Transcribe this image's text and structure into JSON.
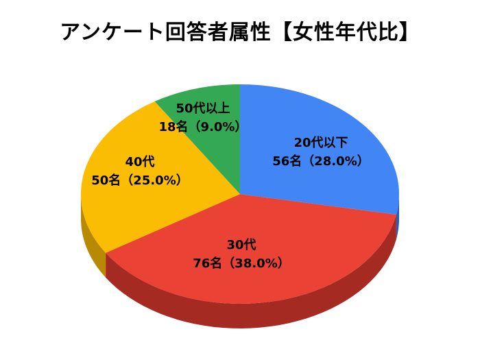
{
  "chart_data": {
    "type": "pie",
    "title": "アンケート回答者属性【女性年代比】",
    "style": "3d",
    "legend": "none",
    "slices": [
      {
        "label": "20代以下",
        "count": 56,
        "count_text": "56名",
        "percent": 28.0,
        "value_text": "56名（28.0%）",
        "color": "#4285F4",
        "side_color": "#2A5DB8"
      },
      {
        "label": "30代",
        "count": 76,
        "count_text": "76名",
        "percent": 38.0,
        "value_text": "76名（38.0%）",
        "color": "#EA4335",
        "side_color": "#A52A22"
      },
      {
        "label": "40代",
        "count": 50,
        "count_text": "50名",
        "percent": 25.0,
        "value_text": "50名（25.0%）",
        "color": "#FBBC04",
        "side_color": "#B88A03"
      },
      {
        "label": "50代以上",
        "count": 18,
        "count_text": "18名",
        "percent": 9.0,
        "value_text": "18名（9.0%）",
        "color": "#34A853",
        "side_color": "#237A3B"
      }
    ]
  }
}
